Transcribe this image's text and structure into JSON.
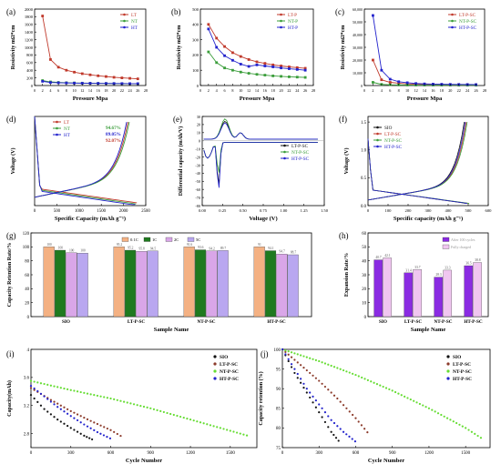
{
  "chart_data": [
    {
      "id": "a",
      "panel_label": "(a)",
      "type": "line",
      "xlabel": "Pressure Mpa",
      "ylabel": "Resistivity mΩ*cm",
      "xlim": [
        0,
        28
      ],
      "ylim": [
        0,
        2000
      ],
      "xticks": [
        0,
        2,
        4,
        6,
        8,
        10,
        12,
        14,
        16,
        18,
        20,
        22,
        24,
        26,
        28
      ],
      "yticks": [
        0,
        200,
        400,
        600,
        800,
        1000,
        1200,
        1400,
        1600,
        1800,
        2000
      ],
      "x": [
        2,
        4,
        6,
        8,
        10,
        12,
        14,
        16,
        18,
        20,
        22,
        24,
        26
      ],
      "series": [
        {
          "name": "LT",
          "color": "#c0392b",
          "values": [
            1820,
            680,
            480,
            400,
            350,
            310,
            280,
            255,
            235,
            215,
            200,
            188,
            175
          ]
        },
        {
          "name": "NT",
          "color": "#3a9d3a",
          "values": [
            130,
            95,
            82,
            74,
            68,
            63,
            60,
            57,
            55,
            53,
            51,
            50,
            49
          ]
        },
        {
          "name": "HT",
          "color": "#2222cc",
          "values": [
            110,
            80,
            72,
            67,
            63,
            60,
            58,
            56,
            54,
            52,
            51,
            50,
            49
          ]
        }
      ],
      "legend": "top-right",
      "legend_labels": [
        "LT",
        "NT",
        "HT"
      ]
    },
    {
      "id": "b",
      "panel_label": "(b)",
      "type": "line",
      "xlabel": "Pressure Mpa",
      "ylabel": "Resistivity mΩ*cm",
      "xlim": [
        0,
        28
      ],
      "ylim": [
        0,
        500
      ],
      "xticks": [
        0,
        2,
        4,
        6,
        8,
        10,
        12,
        14,
        16,
        18,
        20,
        22,
        24,
        26,
        28
      ],
      "yticks": [
        0,
        100,
        200,
        300,
        400,
        500
      ],
      "x": [
        2,
        4,
        6,
        8,
        10,
        12,
        14,
        16,
        18,
        20,
        22,
        24,
        26
      ],
      "series": [
        {
          "name": "LT-P",
          "color": "#c0392b",
          "values": [
            400,
            310,
            255,
            215,
            190,
            170,
            155,
            145,
            135,
            128,
            122,
            117,
            113
          ]
        },
        {
          "name": "NT-P",
          "color": "#3a9d3a",
          "values": [
            220,
            150,
            115,
            100,
            88,
            80,
            73,
            68,
            63,
            60,
            57,
            55,
            53
          ]
        },
        {
          "name": "HT-P",
          "color": "#2222cc",
          "values": [
            370,
            250,
            195,
            165,
            140,
            125,
            135,
            128,
            122,
            115,
            110,
            105,
            100
          ]
        }
      ],
      "legend": "top-right",
      "legend_labels": [
        "LT-P",
        "NT-P",
        "HT-P"
      ]
    },
    {
      "id": "c",
      "panel_label": "(c)",
      "type": "line",
      "xlabel": "Pressure Mpa",
      "ylabel": "Resistivity mΩ*cm",
      "xlim": [
        0,
        28
      ],
      "ylim": [
        0,
        60000
      ],
      "xticks": [
        0,
        2,
        4,
        6,
        8,
        10,
        12,
        14,
        16,
        18,
        20,
        22,
        24,
        26,
        28
      ],
      "yticks": [
        0,
        10000,
        20000,
        30000,
        40000,
        50000,
        60000
      ],
      "ytick_labels": [
        "0",
        "10,000",
        "20,000",
        "30,000",
        "40,000",
        "50,000",
        "60,000"
      ],
      "x": [
        2,
        4,
        6,
        8,
        10,
        12,
        14,
        16,
        18,
        20,
        22,
        24,
        26
      ],
      "series": [
        {
          "name": "LT-P-SC",
          "color": "#c0392b",
          "values": [
            20000,
            4500,
            2500,
            1800,
            1300,
            1000,
            900,
            800,
            700,
            650,
            600,
            560,
            530
          ]
        },
        {
          "name": "NT-P-SC",
          "color": "#3a9d3a",
          "values": [
            2500,
            900,
            600,
            450,
            380,
            330,
            300,
            280,
            260,
            250,
            240,
            230,
            220
          ]
        },
        {
          "name": "HT-P-SC",
          "color": "#2222cc",
          "values": [
            55000,
            12000,
            5000,
            3000,
            2200,
            1600,
            1300,
            1100,
            1000,
            900,
            850,
            800,
            750
          ]
        }
      ],
      "legend": "top-right",
      "legend_labels": [
        "LT-P-SC",
        "NT-P-SC",
        "HT-P-SC"
      ]
    },
    {
      "id": "d",
      "panel_label": "(d)",
      "type": "line",
      "xlabel": "Specific Capacity (mAh g⁻¹)",
      "ylabel": "Voltage (V)",
      "xlim": [
        0,
        2500
      ],
      "ylim": [
        0,
        1.6
      ],
      "xticks": [
        0,
        500,
        1000,
        1500,
        2000,
        2500
      ],
      "yticks": [],
      "series": [
        {
          "name": "LT",
          "color": "#c0392b",
          "charge_cap": 2100,
          "discharge_cap": 2300
        },
        {
          "name": "NT",
          "color": "#3a9d3a",
          "charge_cap": 2130,
          "discharge_cap": 2280
        },
        {
          "name": "HT",
          "color": "#2222cc",
          "charge_cap": 2070,
          "discharge_cap": 2260
        }
      ],
      "annotations": [
        {
          "text": "94.67%",
          "color": "#3a9d3a"
        },
        {
          "text": "89.05%",
          "color": "#2222cc"
        },
        {
          "text": "92.07%",
          "color": "#c0392b"
        }
      ],
      "legend": "top-left",
      "legend_labels": [
        "LT",
        "NT",
        "HT"
      ]
    },
    {
      "id": "e",
      "panel_label": "(e)",
      "type": "line",
      "xlabel": "Voltage (V)",
      "ylabel": "Differential capacity (mAh/V)",
      "xlim": [
        0,
        1.5
      ],
      "ylim": [
        -80,
        30
      ],
      "xticks": [
        0,
        0.25,
        0.5,
        0.75,
        1.0,
        1.25,
        1.5
      ],
      "xtick_labels": [
        "0.00",
        "0.25",
        "0.50",
        "0.75",
        "1.00",
        "1.25",
        "1.50"
      ],
      "yticks": [
        -80,
        -70,
        -60,
        -50,
        -40,
        -30,
        -20,
        -10,
        0,
        10,
        20,
        30
      ],
      "series": [
        {
          "name": "LT-P-SC",
          "color": "#111111"
        },
        {
          "name": "NT-P-SC",
          "color": "#3a9d3a"
        },
        {
          "name": "HT-P-SC",
          "color": "#2222cc"
        }
      ],
      "legend": "right",
      "legend_labels": [
        "LT-P-SC",
        "NT-P-SC",
        "HT-P-SC"
      ]
    },
    {
      "id": "f",
      "panel_label": "(f)",
      "type": "line",
      "xlabel": "Specific capacity (mAh g⁻¹)",
      "ylabel": "Voltage (V)",
      "xlim": [
        0,
        600
      ],
      "ylim": [
        0,
        1.6
      ],
      "xticks": [
        0,
        100,
        200,
        300,
        400,
        500,
        600
      ],
      "yticks": [
        0.0,
        0.5,
        1.0,
        1.5
      ],
      "ytick_labels": [
        "0.0",
        "0.5",
        "1.0",
        "1.5"
      ],
      "series": [
        {
          "name": "SIO",
          "color": "#111111",
          "cap": 490
        },
        {
          "name": "LT-P-SC",
          "color": "#c0392b",
          "cap": 500
        },
        {
          "name": "NT-P-SC",
          "color": "#3a9d3a",
          "cap": 505
        },
        {
          "name": "HT-P-SC",
          "color": "#2222cc",
          "cap": 495
        }
      ],
      "legend": "top-left",
      "legend_labels": [
        "SIO",
        "LT-P-SC",
        "NT-P-SC",
        "HT-P-SC"
      ]
    },
    {
      "id": "g",
      "panel_label": "(g)",
      "type": "bar",
      "xlabel": "Sample Name",
      "ylabel": "Capacity Retention Rate/%",
      "ylim": [
        0,
        120
      ],
      "yticks": [
        0,
        20,
        40,
        60,
        80,
        100,
        120
      ],
      "categories": [
        "SIO",
        "LT-P-SC",
        "NT-P-SC",
        "HT-P-SC"
      ],
      "series": [
        {
          "name": "0.1C",
          "color": "#f4b183",
          "values": [
            100,
            100,
            100,
            100
          ]
        },
        {
          "name": "1C",
          "color": "#1f7a1f",
          "values": [
            95.2,
            95.2,
            95.8,
            94.5
          ]
        },
        {
          "name": "2C",
          "color": "#d9a6e8",
          "values": [
            91.6,
            93.6,
            94.2,
            89.7
          ]
        },
        {
          "name": "5C",
          "color": "#b9a7f0",
          "values": [
            91,
            94.1,
            94.7,
            88.7
          ]
        }
      ],
      "data_labels": [
        [
          "100",
          "95.2",
          "91.6",
          "91"
        ],
        [
          "100",
          "95.2",
          "93.6",
          "94.1"
        ],
        [
          "100",
          "95.8",
          "94.2",
          "94.7"
        ],
        [
          "100",
          "94.5",
          "89.7",
          "88.7"
        ]
      ],
      "legend": "top"
    },
    {
      "id": "h",
      "panel_label": "(h)",
      "type": "bar",
      "xlabel": "Sample Name",
      "ylabel": "Expansion Rate/%",
      "ylim": [
        0,
        60
      ],
      "yticks": [
        0,
        10,
        20,
        30,
        40,
        50,
        60
      ],
      "categories": [
        "SIO",
        "LT-P-SC",
        "NT-P-SC",
        "HT-P-SC"
      ],
      "series": [
        {
          "name": "After 100 cycles",
          "color": "#8a2be2",
          "values": [
            40.7,
            31.4,
            28.3,
            36.5
          ]
        },
        {
          "name": "Fully charged",
          "color": "#f0c6f0",
          "values": [
            42.1,
            33.7,
            33.3,
            38.8
          ]
        }
      ],
      "data_labels": [
        [
          "40.7",
          "31.4",
          "28.3",
          "36.5"
        ],
        [
          "42.1",
          "33.7",
          "33.3",
          "38.8"
        ]
      ],
      "legend": "top-right"
    },
    {
      "id": "i",
      "panel_label": "(i)",
      "type": "scatter",
      "xlabel": "Cycle Number",
      "ylabel": "Capacity(mAh)",
      "xlim": [
        0,
        1700
      ],
      "ylim": [
        2.6,
        4.0
      ],
      "xticks": [
        0,
        300,
        600,
        900,
        1200,
        1500
      ],
      "yticks": [
        2.8,
        3.2,
        3.6,
        4.0
      ],
      "series": [
        {
          "name": "SIO",
          "color": "#111111",
          "x": [
            0,
            100,
            200,
            300,
            400,
            480
          ],
          "values": [
            3.35,
            3.15,
            3.0,
            2.88,
            2.77,
            2.7
          ]
        },
        {
          "name": "LT-P-SC",
          "color": "#8b3a2a",
          "x": [
            0,
            150,
            300,
            450,
            600,
            700
          ],
          "values": [
            3.45,
            3.28,
            3.12,
            2.98,
            2.85,
            2.74
          ]
        },
        {
          "name": "NT-P-SC",
          "color": "#66dd33",
          "x": [
            0,
            300,
            600,
            900,
            1200,
            1500,
            1650
          ],
          "values": [
            3.55,
            3.42,
            3.3,
            3.16,
            3.0,
            2.84,
            2.76
          ]
        },
        {
          "name": "HT-P-SC",
          "color": "#2222cc",
          "x": [
            0,
            100,
            200,
            300,
            400,
            500,
            620
          ],
          "values": [
            3.48,
            3.33,
            3.18,
            3.05,
            2.93,
            2.82,
            2.71
          ]
        }
      ],
      "legend": "top-right"
    },
    {
      "id": "j",
      "panel_label": "(j)",
      "type": "scatter",
      "xlabel": "Cycle Number",
      "ylabel": "Capacity retention (%)",
      "xlim": [
        0,
        1700
      ],
      "ylim": [
        75,
        100
      ],
      "xticks": [
        0,
        300,
        600,
        900,
        1200,
        1500
      ],
      "yticks": [
        75,
        80,
        85,
        90,
        95,
        100
      ],
      "series": [
        {
          "name": "SIO",
          "color": "#111111",
          "x": [
            0,
            100,
            200,
            300,
            400,
            480
          ],
          "values": [
            100,
            94,
            89,
            84,
            79,
            76
          ]
        },
        {
          "name": "LT-P-SC",
          "color": "#8b3a2a",
          "x": [
            0,
            150,
            300,
            450,
            600,
            720
          ],
          "values": [
            100,
            96,
            92,
            87.5,
            82.5,
            78
          ]
        },
        {
          "name": "NT-P-SC",
          "color": "#66dd33",
          "x": [
            0,
            300,
            600,
            900,
            1200,
            1500,
            1650
          ],
          "values": [
            100,
            97,
            93.5,
            89.5,
            85,
            80,
            77
          ]
        },
        {
          "name": "HT-P-SC",
          "color": "#2222cc",
          "x": [
            0,
            100,
            200,
            300,
            400,
            500,
            620
          ],
          "values": [
            100,
            95,
            90,
            86,
            82,
            79,
            76
          ]
        }
      ],
      "legend": "top-right"
    }
  ]
}
